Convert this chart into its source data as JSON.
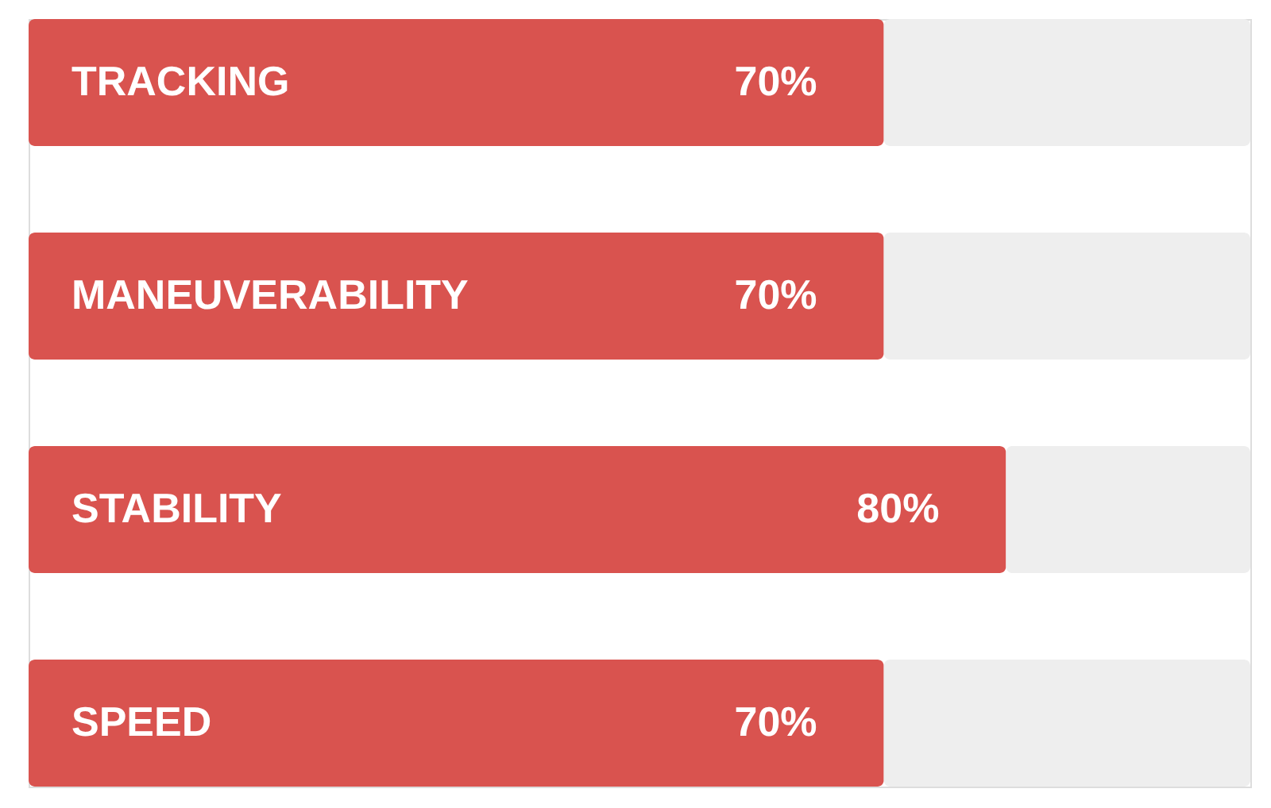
{
  "chart_data": {
    "type": "bar",
    "orientation": "horizontal",
    "stacked": true,
    "categories": [
      "TRACKING",
      "MANEUVERABILITY",
      "STABILITY",
      "SPEED"
    ],
    "series": [
      {
        "color": "#d9534f",
        "values": [
          70,
          70,
          80,
          70
        ],
        "value_labels": [
          "70%",
          "70%",
          "80%",
          "70%"
        ]
      },
      {
        "color": "#eeeeee",
        "values": [
          30,
          30,
          20,
          30
        ]
      }
    ],
    "xlim": [
      0,
      100
    ],
    "tick_labels": false
  }
}
